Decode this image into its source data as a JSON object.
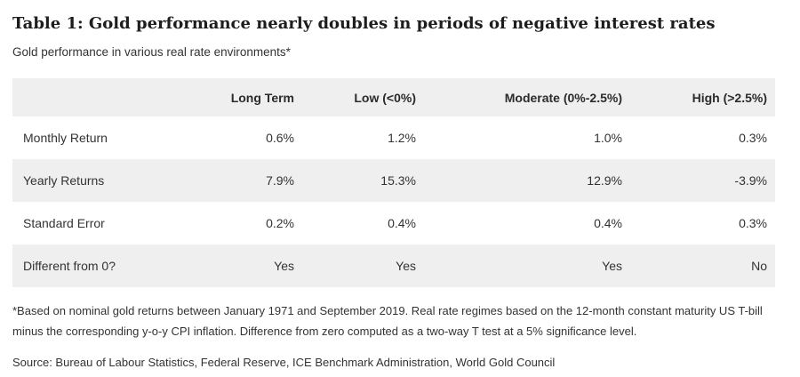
{
  "chart_data": {
    "type": "table",
    "title": "Table 1: Gold performance nearly doubles in periods of negative interest rates",
    "subtitle": "Gold performance in various real rate environments*",
    "columns": [
      "",
      "Long Term",
      "Low (<0%)",
      "Moderate (0%-2.5%)",
      "High (>2.5%)"
    ],
    "rows": [
      {
        "label": "Monthly Return",
        "values": [
          "0.6%",
          "1.2%",
          "1.0%",
          "0.3%"
        ]
      },
      {
        "label": "Yearly Returns",
        "values": [
          "7.9%",
          "15.3%",
          "12.9%",
          "-3.9%"
        ]
      },
      {
        "label": "Standard Error",
        "values": [
          "0.2%",
          "0.4%",
          "0.4%",
          "0.3%"
        ]
      },
      {
        "label": "Different from 0?",
        "values": [
          "Yes",
          "Yes",
          "Yes",
          "No"
        ]
      }
    ],
    "footnote": "*Based on nominal gold returns between January 1971 and September 2019. Real rate regimes based on the 12-month constant maturity US T-bill minus the corresponding y-o-y CPI inflation. Difference from zero computed as a two-way T test at a 5% significance level.",
    "source": "Source: Bureau of Labour Statistics, Federal Reserve, ICE Benchmark Administration, World Gold Council",
    "layout": {
      "legend": "none",
      "grid": "off",
      "stripe_style": "alternating rows, header shaded"
    }
  },
  "colors": {
    "row_stripe": "#efefef",
    "title_text": "#1d1d1d",
    "body_text": "#333333",
    "background": "#ffffff"
  }
}
